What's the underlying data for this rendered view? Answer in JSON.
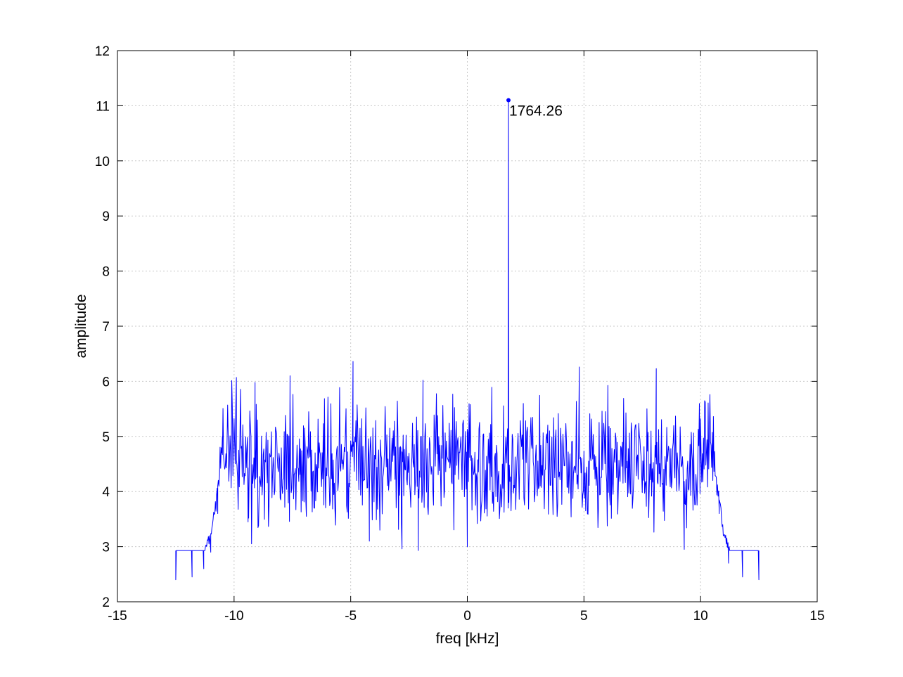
{
  "chart_data": {
    "type": "line",
    "title": "",
    "xlabel": "freq [kHz]",
    "ylabel": "amplitude",
    "xlim": [
      -15,
      15
    ],
    "ylim": [
      2,
      12
    ],
    "xticks": [
      -15,
      -10,
      -5,
      0,
      5,
      10,
      15
    ],
    "yticks": [
      2,
      3,
      4,
      5,
      6,
      7,
      8,
      9,
      10,
      11,
      12
    ],
    "xtick_labels": [
      "-15",
      "-10",
      "-5",
      "0",
      "5",
      "10",
      "15"
    ],
    "ytick_labels": [
      "2",
      "3",
      "4",
      "5",
      "6",
      "7",
      "8",
      "9",
      "10",
      "11",
      "12"
    ],
    "grid": true,
    "line_color": "#0000ff",
    "series": [
      {
        "name": "",
        "noise_floor": {
          "x_range": [
            -12.5,
            12.5
          ],
          "edge_level": 2.4,
          "passband": [
            -10.6,
            10.6
          ],
          "passband_mean": 4.5,
          "passband_min": 2.93,
          "passband_max": 6.36
        },
        "points": [
          {
            "x": -12.5,
            "y": 2.4
          },
          {
            "x": -11.8,
            "y": 2.45
          },
          {
            "x": -11.3,
            "y": 2.6
          },
          {
            "x": -11.0,
            "y": 2.9
          },
          {
            "x": -10.7,
            "y": 3.6
          },
          {
            "x": -10.5,
            "y": 5.0
          },
          {
            "x": -9.9,
            "y": 6.07
          },
          {
            "x": -9.4,
            "y": 3.45
          },
          {
            "x": -9.1,
            "y": 5.98
          },
          {
            "x": -7.6,
            "y": 6.1
          },
          {
            "x": -6.9,
            "y": 3.55
          },
          {
            "x": -4.9,
            "y": 6.36
          },
          {
            "x": -4.2,
            "y": 3.1
          },
          {
            "x": -2.8,
            "y": 2.96
          },
          {
            "x": -2.1,
            "y": 2.93
          },
          {
            "x": -1.9,
            "y": 6.02
          },
          {
            "x": 0.0,
            "y": 3.0
          },
          {
            "x": 1.75,
            "y": 3.7
          },
          {
            "x": 1.76426,
            "y": 11.1
          },
          {
            "x": 1.78,
            "y": 3.8
          },
          {
            "x": 4.8,
            "y": 6.26
          },
          {
            "x": 8.1,
            "y": 6.23
          },
          {
            "x": 9.3,
            "y": 2.95
          },
          {
            "x": 10.5,
            "y": 5.0
          },
          {
            "x": 10.8,
            "y": 3.6
          },
          {
            "x": 11.2,
            "y": 2.7
          },
          {
            "x": 11.8,
            "y": 2.45
          },
          {
            "x": 12.5,
            "y": 2.4
          }
        ]
      }
    ],
    "annotations": [
      {
        "x": 1.76426,
        "y": 11.1,
        "text": "1764.26"
      }
    ]
  }
}
